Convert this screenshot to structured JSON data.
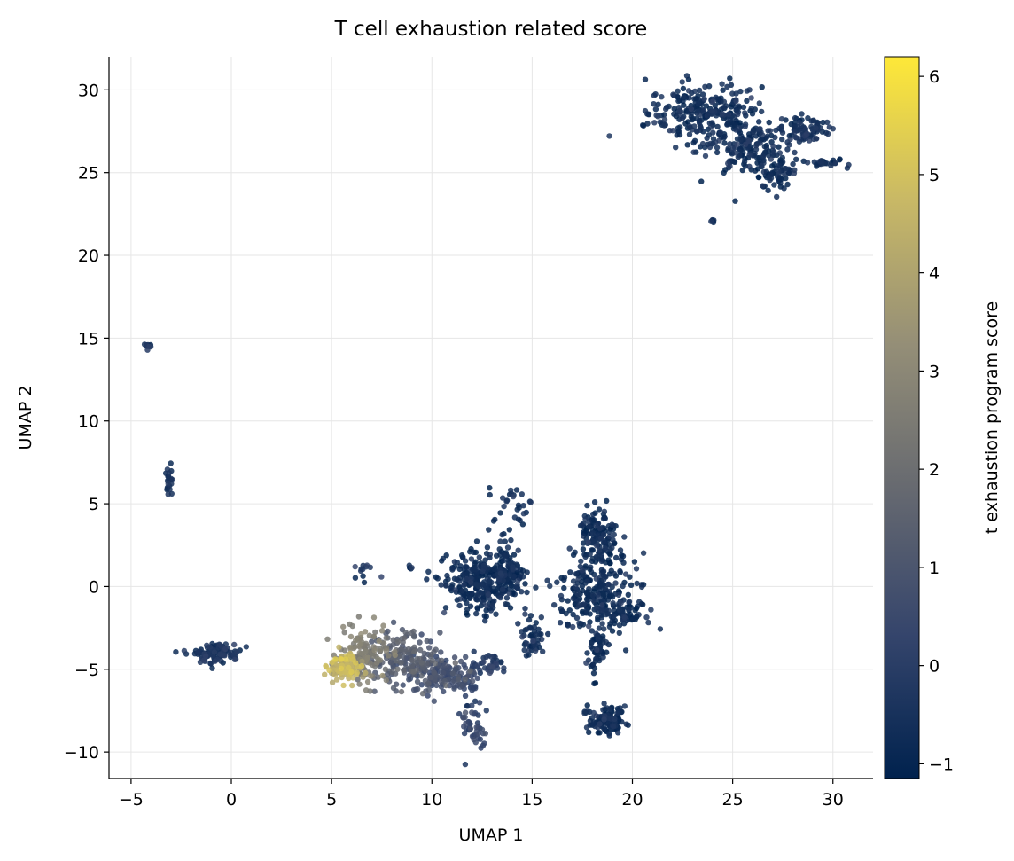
{
  "chart_data": {
    "type": "scatter",
    "title": "T cell exhaustion related score",
    "xlabel": "UMAP 1",
    "ylabel": "UMAP 2",
    "xlim": [
      -6.1,
      32.0
    ],
    "ylim": [
      -11.6,
      32.0
    ],
    "xticks": [
      -5,
      0,
      5,
      10,
      15,
      20,
      25,
      30
    ],
    "yticks": [
      -10,
      -5,
      0,
      5,
      10,
      15,
      20,
      25,
      30
    ],
    "xtick_labels": [
      "−5",
      "0",
      "5",
      "10",
      "15",
      "20",
      "25",
      "30"
    ],
    "ytick_labels": [
      "−10",
      "−5",
      "0",
      "5",
      "10",
      "15",
      "20",
      "25",
      "30"
    ],
    "grid": true,
    "colorbar": {
      "label": "t exhaustion program score",
      "colormap": "cividis",
      "min": -1.15,
      "max": 6.2,
      "ticks": [
        -1,
        0,
        1,
        2,
        3,
        4,
        5,
        6
      ],
      "tick_labels": [
        "−1",
        "0",
        "1",
        "2",
        "3",
        "4",
        "5",
        "6"
      ],
      "color_stops": [
        "#00224e",
        "#35456c",
        "#666970",
        "#948e77",
        "#c8b866",
        "#fee838"
      ]
    },
    "clusters": [
      {
        "cx": 23.6,
        "cy": 28.6,
        "sx": 1.4,
        "sy": 0.9,
        "n": 260,
        "score": -0.8
      },
      {
        "cx": 25.7,
        "cy": 26.5,
        "sx": 1.0,
        "sy": 0.8,
        "n": 160,
        "score": -0.8
      },
      {
        "cx": 27.2,
        "cy": 25.0,
        "sx": 0.5,
        "sy": 0.5,
        "n": 50,
        "score": -0.8
      },
      {
        "cx": 28.6,
        "cy": 27.6,
        "sx": 0.6,
        "sy": 0.4,
        "n": 80,
        "score": -0.8
      },
      {
        "cx": 29.5,
        "cy": 25.6,
        "sx": 0.6,
        "sy": 0.15,
        "n": 25,
        "score": -0.8
      },
      {
        "cx": 24.0,
        "cy": 22.1,
        "sx": 0.05,
        "sy": 0.05,
        "n": 6,
        "score": -0.8
      },
      {
        "cx": -4.2,
        "cy": 14.6,
        "sx": 0.1,
        "sy": 0.15,
        "n": 10,
        "score": -0.6
      },
      {
        "cx": -3.1,
        "cy": 6.3,
        "sx": 0.1,
        "sy": 0.5,
        "n": 22,
        "score": -0.5
      },
      {
        "cx": -0.7,
        "cy": -4.0,
        "sx": 0.55,
        "sy": 0.3,
        "n": 110,
        "score": -0.6
      },
      {
        "cx": 6.7,
        "cy": 0.9,
        "sx": 0.3,
        "sy": 0.3,
        "n": 12,
        "score": -0.3
      },
      {
        "cx": 8.9,
        "cy": 1.1,
        "sx": 0.06,
        "sy": 0.08,
        "n": 5,
        "score": -0.5
      },
      {
        "cx": 5.6,
        "cy": -4.9,
        "sx": 0.4,
        "sy": 0.45,
        "n": 90,
        "score": 4.6
      },
      {
        "cx": 6.6,
        "cy": -4.2,
        "sx": 0.6,
        "sy": 0.8,
        "n": 130,
        "score": 2.6
      },
      {
        "cx": 8.6,
        "cy": -4.4,
        "sx": 0.9,
        "sy": 0.8,
        "n": 170,
        "score": 1.2
      },
      {
        "cx": 10.6,
        "cy": -5.3,
        "sx": 0.8,
        "sy": 0.6,
        "n": 130,
        "score": 0.7
      },
      {
        "cx": 12.8,
        "cy": -4.8,
        "sx": 0.5,
        "sy": 0.4,
        "n": 40,
        "score": -0.2
      },
      {
        "cx": 11.9,
        "cy": -7.4,
        "sx": 0.3,
        "sy": 1.2,
        "n": 45,
        "score": 0.1
      },
      {
        "cx": 12.3,
        "cy": -9.0,
        "sx": 0.2,
        "sy": 0.4,
        "n": 15,
        "score": 0.5
      },
      {
        "cx": 12.5,
        "cy": 0.2,
        "sx": 0.9,
        "sy": 0.9,
        "n": 280,
        "score": -0.9
      },
      {
        "cx": 13.8,
        "cy": 1.0,
        "sx": 0.35,
        "sy": 0.7,
        "n": 80,
        "score": -0.8
      },
      {
        "cx": 14.0,
        "cy": 4.8,
        "sx": 0.6,
        "sy": 0.7,
        "n": 30,
        "score": -0.8
      },
      {
        "cx": 15.0,
        "cy": -3.0,
        "sx": 0.3,
        "sy": 0.6,
        "n": 45,
        "score": -0.8
      },
      {
        "cx": 18.3,
        "cy": 3.0,
        "sx": 0.5,
        "sy": 0.8,
        "n": 130,
        "score": -0.9
      },
      {
        "cx": 18.2,
        "cy": -0.5,
        "sx": 1.0,
        "sy": 1.2,
        "n": 250,
        "score": -0.9
      },
      {
        "cx": 19.6,
        "cy": -1.6,
        "sx": 0.5,
        "sy": 0.4,
        "n": 50,
        "score": -0.9
      },
      {
        "cx": 18.2,
        "cy": -3.9,
        "sx": 0.25,
        "sy": 0.7,
        "n": 50,
        "score": -0.9
      },
      {
        "cx": 18.7,
        "cy": -8.1,
        "sx": 0.45,
        "sy": 0.4,
        "n": 120,
        "score": -0.9
      }
    ]
  }
}
